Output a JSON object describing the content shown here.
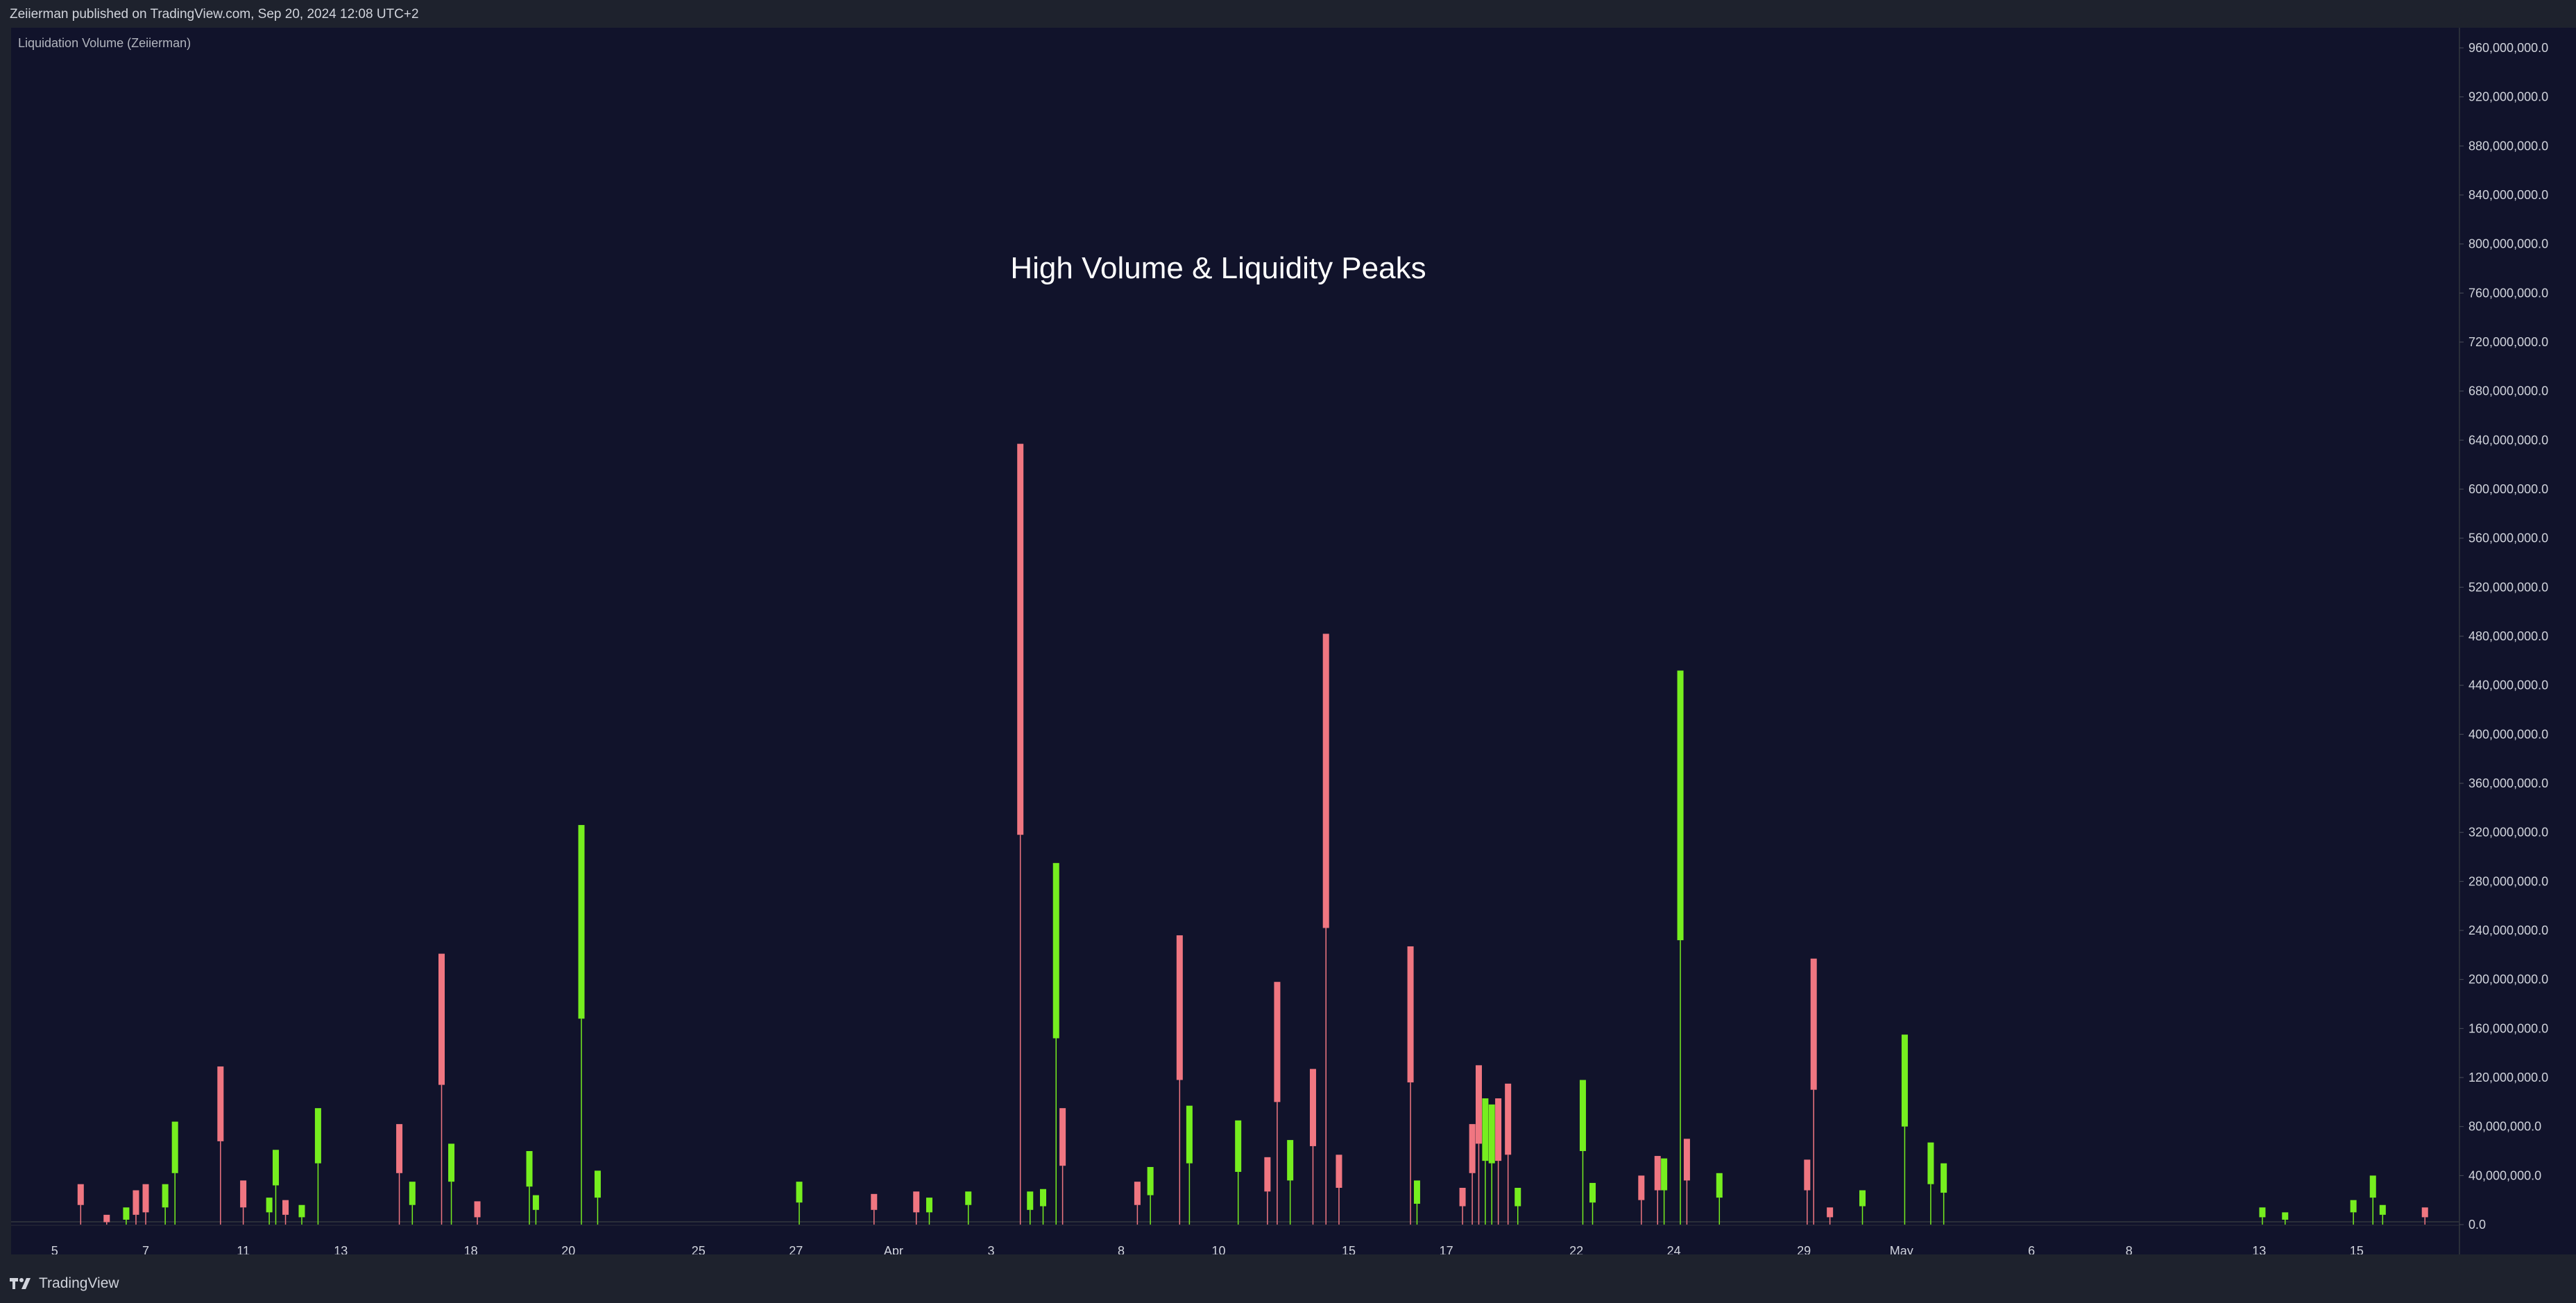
{
  "header": {
    "published": "Zeiierman published on TradingView.com, Sep 20, 2024 12:08 UTC+2"
  },
  "footer": {
    "brand": "TradingView",
    "logo_icon": "tradingview-logo-icon"
  },
  "colors": {
    "background": "#11132b",
    "up": "#76ee1f",
    "down": "#f07681",
    "text": "#d1d4dc"
  },
  "chart_data": {
    "type": "bar",
    "indicator": "Liquidation Volume (Zeiierman)",
    "annotation": "High Volume & Liquidity Peaks",
    "ylim": [
      0,
      970000000
    ],
    "y_ticks": [
      {
        "value": 0,
        "label": "0.0"
      },
      {
        "value": 40000000,
        "label": "40,000,000.0"
      },
      {
        "value": 80000000,
        "label": "80,000,000.0"
      },
      {
        "value": 120000000,
        "label": "120,000,000.0"
      },
      {
        "value": 160000000,
        "label": "160,000,000.0"
      },
      {
        "value": 200000000,
        "label": "200,000,000.0"
      },
      {
        "value": 240000000,
        "label": "240,000,000.0"
      },
      {
        "value": 280000000,
        "label": "280,000,000.0"
      },
      {
        "value": 320000000,
        "label": "320,000,000.0"
      },
      {
        "value": 360000000,
        "label": "360,000,000.0"
      },
      {
        "value": 400000000,
        "label": "400,000,000.0"
      },
      {
        "value": 440000000,
        "label": "440,000,000.0"
      },
      {
        "value": 480000000,
        "label": "480,000,000.0"
      },
      {
        "value": 520000000,
        "label": "520,000,000.0"
      },
      {
        "value": 560000000,
        "label": "560,000,000.0"
      },
      {
        "value": 600000000,
        "label": "600,000,000.0"
      },
      {
        "value": 640000000,
        "label": "640,000,000.0"
      },
      {
        "value": 680000000,
        "label": "680,000,000.0"
      },
      {
        "value": 720000000,
        "label": "720,000,000.0"
      },
      {
        "value": 760000000,
        "label": "760,000,000.0"
      },
      {
        "value": 800000000,
        "label": "800,000,000.0"
      },
      {
        "value": 840000000,
        "label": "840,000,000.0"
      },
      {
        "value": 880000000,
        "label": "880,000,000.0"
      },
      {
        "value": 920000000,
        "label": "920,000,000.0"
      },
      {
        "value": 960000000,
        "label": "960,000,000.0"
      }
    ],
    "x_range": [
      0,
      74
    ],
    "x_ticks": [
      {
        "x": 0.7,
        "label": "5"
      },
      {
        "x": 3.5,
        "label": "7"
      },
      {
        "x": 6.5,
        "label": "11"
      },
      {
        "x": 9.5,
        "label": "13"
      },
      {
        "x": 13.5,
        "label": "18"
      },
      {
        "x": 16.5,
        "label": "20"
      },
      {
        "x": 20.5,
        "label": "25"
      },
      {
        "x": 23.5,
        "label": "27"
      },
      {
        "x": 26.5,
        "label": "Apr"
      },
      {
        "x": 29.5,
        "label": "3"
      },
      {
        "x": 33.5,
        "label": "8"
      },
      {
        "x": 36.5,
        "label": "10"
      },
      {
        "x": 40.5,
        "label": "15"
      },
      {
        "x": 43.5,
        "label": "17"
      },
      {
        "x": 47.5,
        "label": "22"
      },
      {
        "x": 50.5,
        "label": "24"
      },
      {
        "x": 54.5,
        "label": "29"
      },
      {
        "x": 57.5,
        "label": "May"
      },
      {
        "x": 61.5,
        "label": "6"
      },
      {
        "x": 64.5,
        "label": "8"
      },
      {
        "x": 68.5,
        "label": "13"
      },
      {
        "x": 71.5,
        "label": "15"
      }
    ],
    "bars": [
      {
        "x": 1.5,
        "low": 16000000,
        "high": 33000000,
        "dir": "down"
      },
      {
        "x": 2.3,
        "low": 2000000,
        "high": 8000000,
        "dir": "down"
      },
      {
        "x": 2.9,
        "low": 4000000,
        "high": 14000000,
        "dir": "up"
      },
      {
        "x": 3.2,
        "low": 8000000,
        "high": 28000000,
        "dir": "down"
      },
      {
        "x": 3.5,
        "low": 10000000,
        "high": 33000000,
        "dir": "down"
      },
      {
        "x": 4.1,
        "low": 14000000,
        "high": 33000000,
        "dir": "up"
      },
      {
        "x": 4.4,
        "low": 42000000,
        "high": 84000000,
        "dir": "up"
      },
      {
        "x": 5.8,
        "low": 68000000,
        "high": 129000000,
        "dir": "down"
      },
      {
        "x": 6.5,
        "low": 14000000,
        "high": 36000000,
        "dir": "down"
      },
      {
        "x": 7.3,
        "low": 10000000,
        "high": 22000000,
        "dir": "up"
      },
      {
        "x": 7.5,
        "low": 32000000,
        "high": 61000000,
        "dir": "up"
      },
      {
        "x": 7.8,
        "low": 8000000,
        "high": 20000000,
        "dir": "down"
      },
      {
        "x": 8.3,
        "low": 6000000,
        "high": 16000000,
        "dir": "up"
      },
      {
        "x": 8.8,
        "low": 50000000,
        "high": 95000000,
        "dir": "up"
      },
      {
        "x": 11.3,
        "low": 42000000,
        "high": 82000000,
        "dir": "down"
      },
      {
        "x": 11.7,
        "low": 16000000,
        "high": 35000000,
        "dir": "up"
      },
      {
        "x": 12.6,
        "low": 114000000,
        "high": 221000000,
        "dir": "down"
      },
      {
        "x": 12.9,
        "low": 35000000,
        "high": 66000000,
        "dir": "up"
      },
      {
        "x": 13.7,
        "low": 6000000,
        "high": 19000000,
        "dir": "down"
      },
      {
        "x": 15.3,
        "low": 31000000,
        "high": 60000000,
        "dir": "up"
      },
      {
        "x": 15.5,
        "low": 12000000,
        "high": 24000000,
        "dir": "up"
      },
      {
        "x": 16.9,
        "low": 168000000,
        "high": 326000000,
        "dir": "up"
      },
      {
        "x": 17.4,
        "low": 22000000,
        "high": 44000000,
        "dir": "up"
      },
      {
        "x": 23.6,
        "low": 18000000,
        "high": 35000000,
        "dir": "up"
      },
      {
        "x": 25.9,
        "low": 12000000,
        "high": 25000000,
        "dir": "down"
      },
      {
        "x": 27.2,
        "low": 10000000,
        "high": 27000000,
        "dir": "down"
      },
      {
        "x": 27.6,
        "low": 10000000,
        "high": 22000000,
        "dir": "up"
      },
      {
        "x": 28.8,
        "low": 16000000,
        "high": 27000000,
        "dir": "up"
      },
      {
        "x": 30.4,
        "low": 318000000,
        "high": 637000000,
        "dir": "down"
      },
      {
        "x": 30.7,
        "low": 12000000,
        "high": 27000000,
        "dir": "up"
      },
      {
        "x": 31.1,
        "low": 15000000,
        "high": 29000000,
        "dir": "up"
      },
      {
        "x": 31.5,
        "low": 152000000,
        "high": 295000000,
        "dir": "up"
      },
      {
        "x": 31.7,
        "low": 48000000,
        "high": 95000000,
        "dir": "down"
      },
      {
        "x": 34.0,
        "low": 16000000,
        "high": 35000000,
        "dir": "down"
      },
      {
        "x": 34.4,
        "low": 24000000,
        "high": 47000000,
        "dir": "up"
      },
      {
        "x": 35.3,
        "low": 118000000,
        "high": 236000000,
        "dir": "down"
      },
      {
        "x": 35.6,
        "low": 50000000,
        "high": 97000000,
        "dir": "up"
      },
      {
        "x": 37.1,
        "low": 43000000,
        "high": 85000000,
        "dir": "up"
      },
      {
        "x": 38.0,
        "low": 27000000,
        "high": 55000000,
        "dir": "down"
      },
      {
        "x": 38.3,
        "low": 100000000,
        "high": 198000000,
        "dir": "down"
      },
      {
        "x": 38.7,
        "low": 36000000,
        "high": 69000000,
        "dir": "up"
      },
      {
        "x": 39.4,
        "low": 64000000,
        "high": 127000000,
        "dir": "down"
      },
      {
        "x": 39.8,
        "low": 242000000,
        "high": 482000000,
        "dir": "down"
      },
      {
        "x": 40.2,
        "low": 30000000,
        "high": 57000000,
        "dir": "down"
      },
      {
        "x": 42.4,
        "low": 116000000,
        "high": 227000000,
        "dir": "down"
      },
      {
        "x": 42.6,
        "low": 17000000,
        "high": 36000000,
        "dir": "up"
      },
      {
        "x": 44.0,
        "low": 15000000,
        "high": 30000000,
        "dir": "down"
      },
      {
        "x": 44.3,
        "low": 42000000,
        "high": 82000000,
        "dir": "down"
      },
      {
        "x": 44.5,
        "low": 66000000,
        "high": 130000000,
        "dir": "down"
      },
      {
        "x": 44.7,
        "low": 52000000,
        "high": 103000000,
        "dir": "up"
      },
      {
        "x": 44.9,
        "low": 50000000,
        "high": 98000000,
        "dir": "up"
      },
      {
        "x": 45.1,
        "low": 52000000,
        "high": 103000000,
        "dir": "down"
      },
      {
        "x": 45.4,
        "low": 57000000,
        "high": 115000000,
        "dir": "down"
      },
      {
        "x": 45.7,
        "low": 15000000,
        "high": 30000000,
        "dir": "up"
      },
      {
        "x": 47.7,
        "low": 60000000,
        "high": 118000000,
        "dir": "up"
      },
      {
        "x": 48.0,
        "low": 18000000,
        "high": 34000000,
        "dir": "up"
      },
      {
        "x": 49.5,
        "low": 20000000,
        "high": 40000000,
        "dir": "down"
      },
      {
        "x": 50.0,
        "low": 28000000,
        "high": 56000000,
        "dir": "down"
      },
      {
        "x": 50.2,
        "low": 28000000,
        "high": 54000000,
        "dir": "up"
      },
      {
        "x": 50.7,
        "low": 232000000,
        "high": 452000000,
        "dir": "up"
      },
      {
        "x": 50.9,
        "low": 36000000,
        "high": 70000000,
        "dir": "down"
      },
      {
        "x": 51.9,
        "low": 22000000,
        "high": 42000000,
        "dir": "up"
      },
      {
        "x": 54.6,
        "low": 28000000,
        "high": 53000000,
        "dir": "down"
      },
      {
        "x": 54.8,
        "low": 110000000,
        "high": 217000000,
        "dir": "down"
      },
      {
        "x": 55.3,
        "low": 6000000,
        "high": 14000000,
        "dir": "down"
      },
      {
        "x": 56.3,
        "low": 15000000,
        "high": 28000000,
        "dir": "up"
      },
      {
        "x": 57.6,
        "low": 80000000,
        "high": 155000000,
        "dir": "up"
      },
      {
        "x": 58.4,
        "low": 33000000,
        "high": 67000000,
        "dir": "up"
      },
      {
        "x": 58.8,
        "low": 26000000,
        "high": 50000000,
        "dir": "up"
      },
      {
        "x": 68.6,
        "low": 6000000,
        "high": 14000000,
        "dir": "up"
      },
      {
        "x": 69.3,
        "low": 4000000,
        "high": 10000000,
        "dir": "up"
      },
      {
        "x": 71.4,
        "low": 10000000,
        "high": 20000000,
        "dir": "up"
      },
      {
        "x": 72.0,
        "low": 22000000,
        "high": 40000000,
        "dir": "up"
      },
      {
        "x": 72.3,
        "low": 8000000,
        "high": 16000000,
        "dir": "up"
      },
      {
        "x": 73.6,
        "low": 6000000,
        "high": 14000000,
        "dir": "down"
      }
    ]
  }
}
